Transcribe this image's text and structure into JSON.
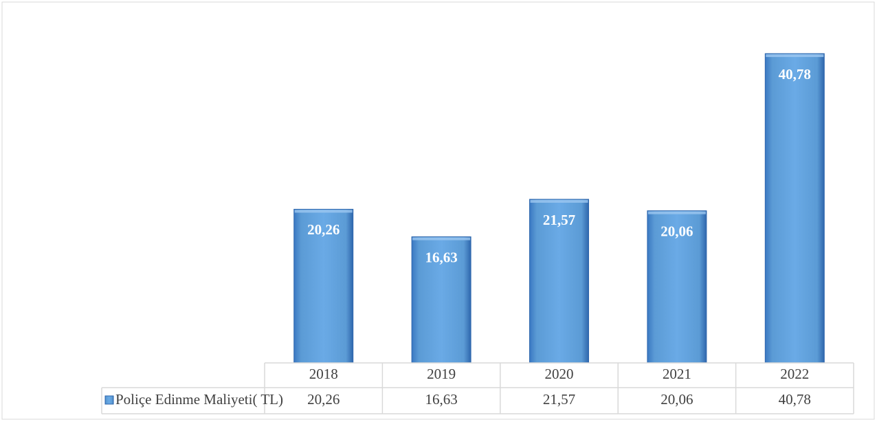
{
  "chart_data": {
    "type": "bar",
    "categories": [
      "2018",
      "2019",
      "2020",
      "2021",
      "2022"
    ],
    "series": [
      {
        "name": "Poliçe Edinme Maliyeti( TL)",
        "color": "#5b9bd5",
        "values": [
          20.26,
          16.63,
          21.57,
          20.06,
          40.78
        ],
        "value_labels": [
          "20,26",
          "16,63",
          "21,57",
          "20,06",
          "40,78"
        ]
      }
    ]
  }
}
